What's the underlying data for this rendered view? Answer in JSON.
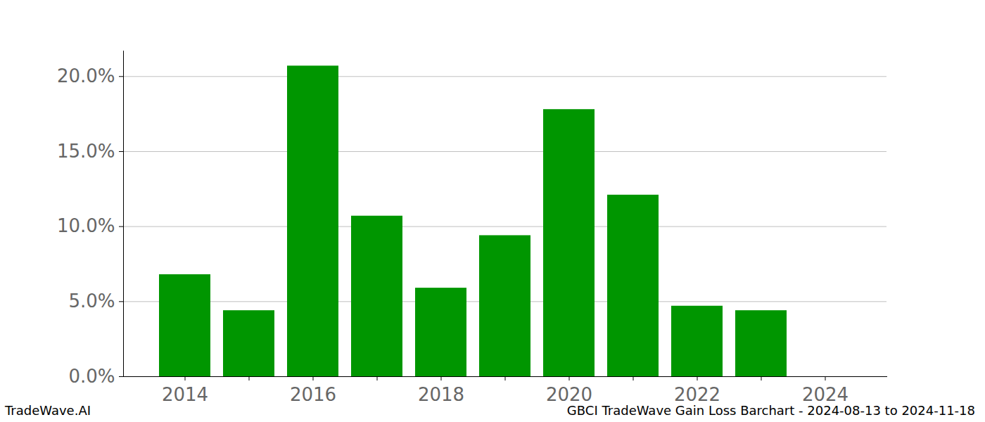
{
  "chart_data": {
    "type": "bar",
    "caption": "GBCI TradeWave Gain Loss Barchart - 2024-08-13 to 2024-11-18",
    "source": "TradeWave.AI",
    "categories": [
      "2014",
      null,
      "2016",
      null,
      "2018",
      null,
      "2020",
      null,
      "2022",
      null,
      "2024"
    ],
    "values": [
      6.8,
      4.4,
      20.7,
      10.7,
      5.9,
      9.4,
      17.8,
      12.1,
      4.7,
      4.4,
      null
    ],
    "color": "#009600",
    "ylim": [
      0,
      21.7
    ],
    "yticks": [
      {
        "value": 0,
        "label": "0.0%"
      },
      {
        "value": 5,
        "label": "5.0%"
      },
      {
        "value": 10,
        "label": "10.0%"
      },
      {
        "value": 15,
        "label": "15.0%"
      },
      {
        "value": 20,
        "label": "20.0%"
      }
    ],
    "grid": true
  }
}
